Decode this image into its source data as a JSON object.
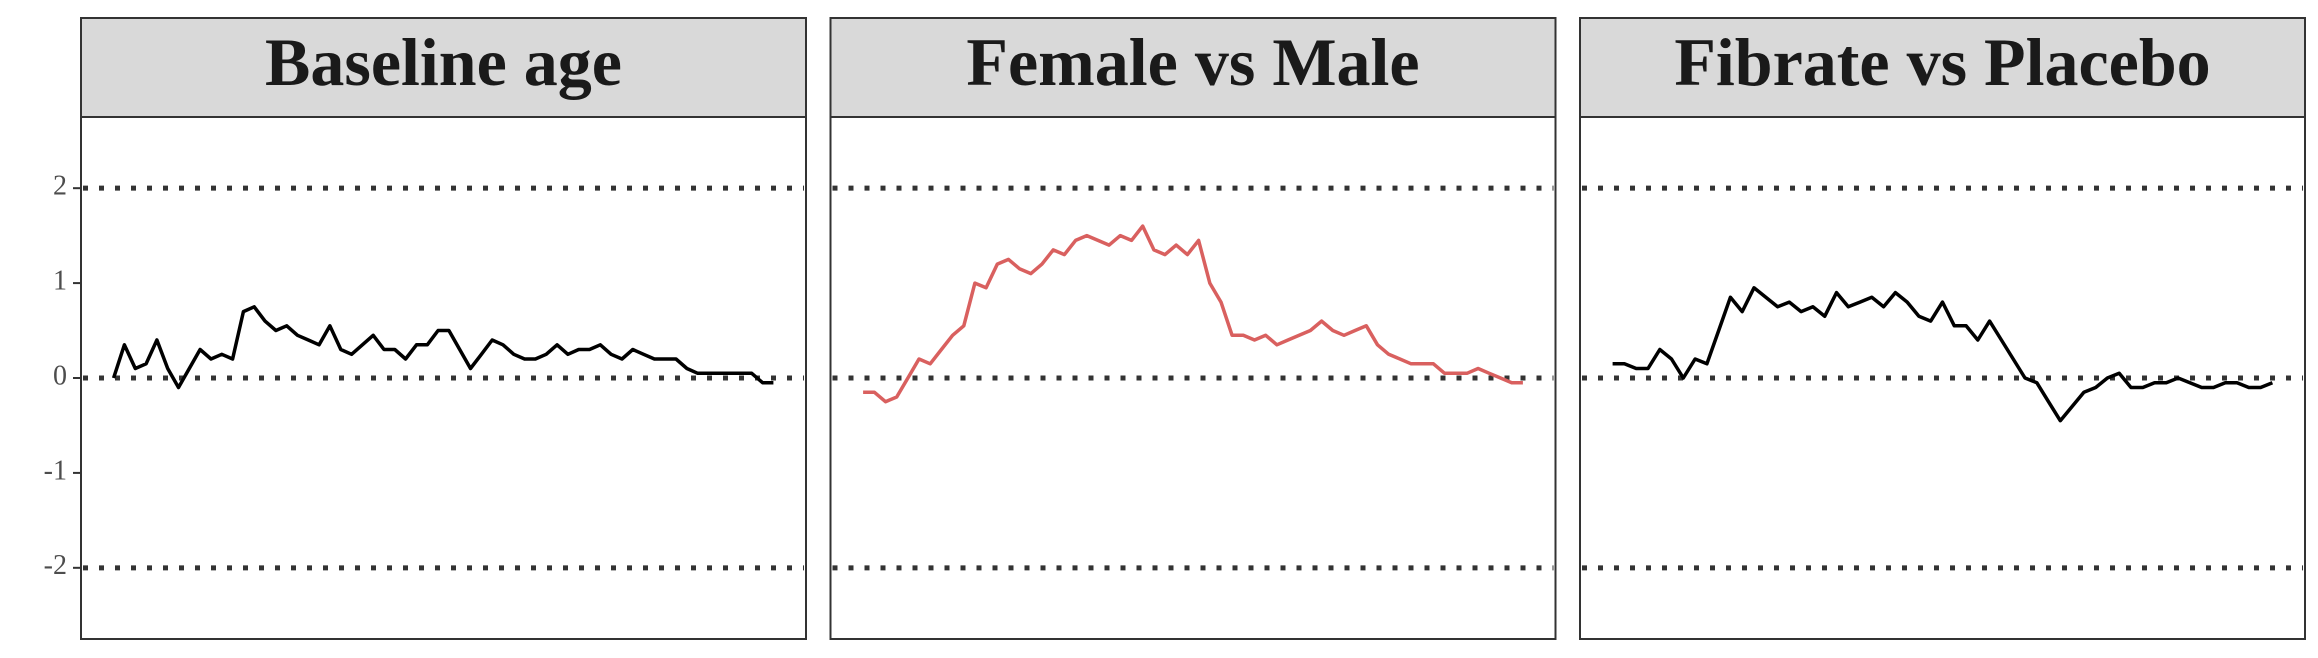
{
  "chart_data": [
    {
      "type": "line",
      "title": "Baseline age",
      "color": "#000000",
      "values": [
        0,
        0.35,
        0.1,
        0.15,
        0.4,
        0.1,
        -0.1,
        0.1,
        0.3,
        0.2,
        0.25,
        0.2,
        0.7,
        0.75,
        0.6,
        0.5,
        0.55,
        0.45,
        0.4,
        0.35,
        0.55,
        0.3,
        0.25,
        0.35,
        0.45,
        0.3,
        0.3,
        0.2,
        0.35,
        0.35,
        0.5,
        0.5,
        0.3,
        0.1,
        0.25,
        0.4,
        0.35,
        0.25,
        0.2,
        0.2,
        0.25,
        0.35,
        0.25,
        0.3,
        0.3,
        0.35,
        0.25,
        0.2,
        0.3,
        0.25,
        0.2,
        0.2,
        0.2,
        0.1,
        0.05,
        0.05,
        0.05,
        0.05,
        0.05,
        0.05,
        -0.05,
        -0.05
      ],
      "ylim": [
        -2.75,
        2.75
      ],
      "yticks": [
        -2,
        -1,
        0,
        1,
        2
      ],
      "reference_lines": [
        -2,
        0,
        2
      ]
    },
    {
      "type": "line",
      "title": "Female vs Male",
      "color": "#d9605f",
      "values": [
        -0.15,
        -0.15,
        -0.25,
        -0.2,
        0,
        0.2,
        0.15,
        0.3,
        0.45,
        0.55,
        1.0,
        0.95,
        1.2,
        1.25,
        1.15,
        1.1,
        1.2,
        1.35,
        1.3,
        1.45,
        1.5,
        1.45,
        1.4,
        1.5,
        1.45,
        1.6,
        1.35,
        1.3,
        1.4,
        1.3,
        1.45,
        1.0,
        0.8,
        0.45,
        0.45,
        0.4,
        0.45,
        0.35,
        0.4,
        0.45,
        0.5,
        0.6,
        0.5,
        0.45,
        0.5,
        0.55,
        0.35,
        0.25,
        0.2,
        0.15,
        0.15,
        0.15,
        0.05,
        0.05,
        0.05,
        0.1,
        0.05,
        0,
        -0.05,
        -0.05
      ],
      "ylim": [
        -2.75,
        2.75
      ],
      "reference_lines": [
        -2,
        0,
        2
      ]
    },
    {
      "type": "line",
      "title": "Fibrate vs Placebo",
      "color": "#000000",
      "values": [
        0.15,
        0.15,
        0.1,
        0.1,
        0.3,
        0.2,
        0,
        0.2,
        0.15,
        0.5,
        0.85,
        0.7,
        0.95,
        0.85,
        0.75,
        0.8,
        0.7,
        0.75,
        0.65,
        0.9,
        0.75,
        0.8,
        0.85,
        0.75,
        0.9,
        0.8,
        0.65,
        0.6,
        0.8,
        0.55,
        0.55,
        0.4,
        0.6,
        0.4,
        0.2,
        0,
        -0.05,
        -0.25,
        -0.45,
        -0.3,
        -0.15,
        -0.1,
        0,
        0.05,
        -0.1,
        -0.1,
        -0.05,
        -0.05,
        0,
        -0.05,
        -0.1,
        -0.1,
        -0.05,
        -0.05,
        -0.1,
        -0.1,
        -0.05
      ],
      "ylim": [
        -2.75,
        2.75
      ],
      "reference_lines": [
        -2,
        0,
        2
      ]
    }
  ]
}
